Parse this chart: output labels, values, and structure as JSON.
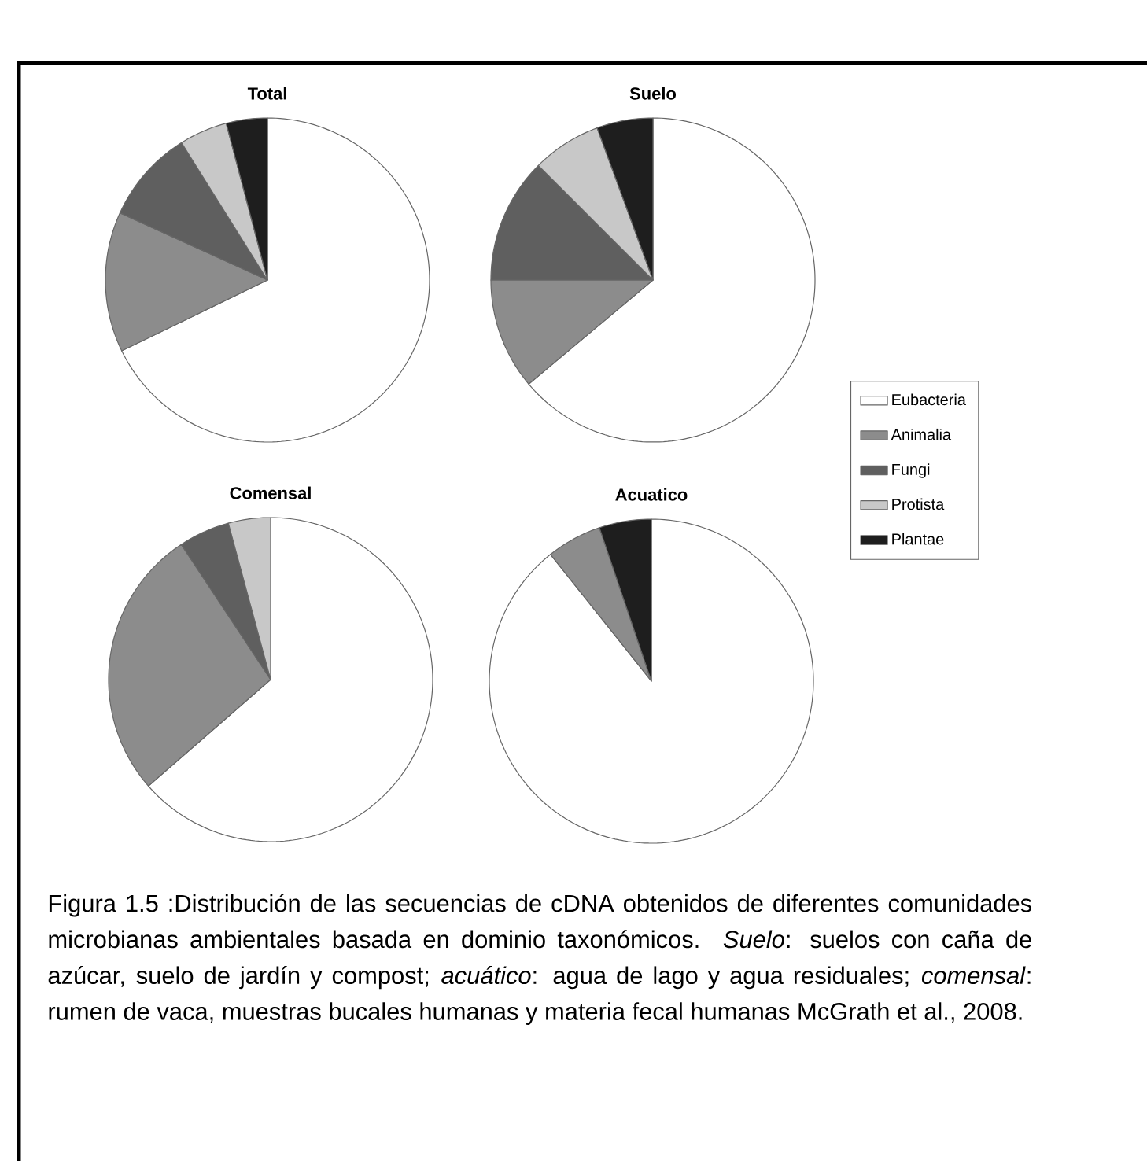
{
  "chart_data": [
    {
      "type": "pie",
      "title": "Total",
      "categories": [
        null,
        null,
        null,
        null,
        null
      ],
      "values": [
        67.8,
        14.0,
        9.3,
        4.8,
        4.1
      ],
      "colors": [
        "#ffffff",
        "#8c8c8c",
        "#5f5f5f",
        "#c8c8c8",
        "#1e1e1e"
      ]
    },
    {
      "type": "pie",
      "title": "Suelo",
      "categories": [
        "Eubacteria",
        "Animalia",
        "Fungi",
        "Protista",
        "Plantae"
      ],
      "values": [
        63.9,
        11.1,
        12.5,
        6.9,
        5.6
      ],
      "colors": [
        "#ffffff",
        "#8c8c8c",
        "#5f5f5f",
        "#c8c8c8",
        "#1e1e1e"
      ],
      "legend": "right"
    },
    {
      "type": "pie",
      "title": "Comensal",
      "categories": [
        null,
        null,
        null,
        null,
        null
      ],
      "values": [
        63.6,
        27.1,
        5.1,
        4.2,
        0
      ],
      "colors": [
        "#ffffff",
        "#8c8c8c",
        "#5f5f5f",
        "#c8c8c8",
        "#1e1e1e"
      ]
    },
    {
      "type": "pie",
      "title": "Acuatico",
      "categories": [
        null,
        null,
        null,
        null,
        null
      ],
      "values": [
        89.3,
        5.5,
        0,
        0,
        5.2
      ],
      "colors": [
        "#ffffff",
        "#8c8c8c",
        "#5f5f5f",
        "#c8c8c8",
        "#1e1e1e"
      ],
      "annotations": [
        "Figura 1.5 :Distribución de las secuencias de cDNA obtenidos de diferentes comunidades microbianas ambientales basada en dominio taxonómicos. *Suelo*:  suelos con caña de azúcar, suelo de jardín y compost; *acuático*: agua de lago y agua residuales; *comensal*:  rumen de vaca, muestras bucales humanas y materia fecal humanas McGrath et al., 2008."
      ]
    }
  ]
}
